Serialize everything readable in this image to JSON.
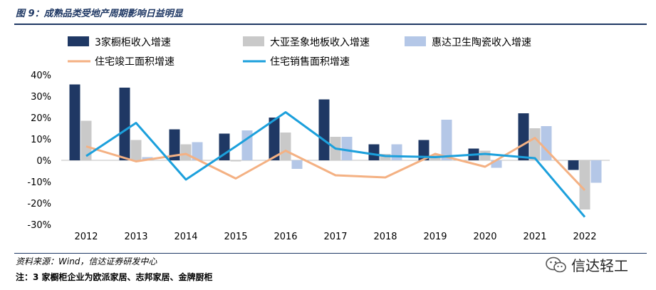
{
  "figure": {
    "title": "图 9：成熟品类受地产周期影响日益明显",
    "source": "资料来源：Wind，信达证券研发中心",
    "note": "注：3 家橱柜企业为欧派家居、志邦家居、金牌厨柜",
    "watermark": "信达轻工",
    "watermark_icon": "wechat-icon"
  },
  "chart_data": {
    "type": "bar",
    "title": "成熟品类受地产周期影响日益明显",
    "categories": [
      "2012",
      "2013",
      "2014",
      "2015",
      "2016",
      "2017",
      "2018",
      "2019",
      "2020",
      "2021",
      "2022"
    ],
    "ylim": [
      -30,
      40
    ],
    "yticks": [
      40,
      30,
      20,
      10,
      0,
      -10,
      -20,
      -30
    ],
    "ytick_labels": [
      "40%",
      "30%",
      "20%",
      "10%",
      "0%",
      "-10%",
      "-20%",
      "-30%"
    ],
    "xlabel": "",
    "ylabel": "",
    "legend_position": "top",
    "series": [
      {
        "name": "3家橱柜收入增速",
        "kind": "bar",
        "color": "#1f3864",
        "values": [
          35.5,
          34,
          14.5,
          12.5,
          20,
          28.5,
          7.5,
          9.5,
          5.5,
          22,
          -4.5
        ]
      },
      {
        "name": "大亚圣象地板收入增速",
        "kind": "bar",
        "color": "#c9c9c9",
        "values": [
          18.5,
          9.5,
          7.5,
          -0.5,
          13,
          11,
          3,
          2.5,
          4.5,
          15,
          -23
        ]
      },
      {
        "name": "惠达卫生陶瓷收入增速",
        "kind": "bar",
        "color": "#b4c7e7",
        "values": [
          0,
          1.5,
          8.5,
          14,
          -4,
          11,
          7.5,
          19,
          -3.5,
          16,
          -10.5
        ]
      },
      {
        "name": "住宅竣工面积增速",
        "kind": "line",
        "color": "#f4b183",
        "values": [
          6.5,
          -0.5,
          3,
          -8.5,
          4.5,
          -7,
          -8,
          3,
          -3,
          10.5,
          -14
        ]
      },
      {
        "name": "住宅销售面积增速",
        "kind": "line",
        "color": "#1ca0dc",
        "values": [
          2,
          17.5,
          -9,
          6.5,
          22.5,
          5.5,
          2,
          1.5,
          3,
          1,
          -26.5
        ]
      }
    ]
  }
}
